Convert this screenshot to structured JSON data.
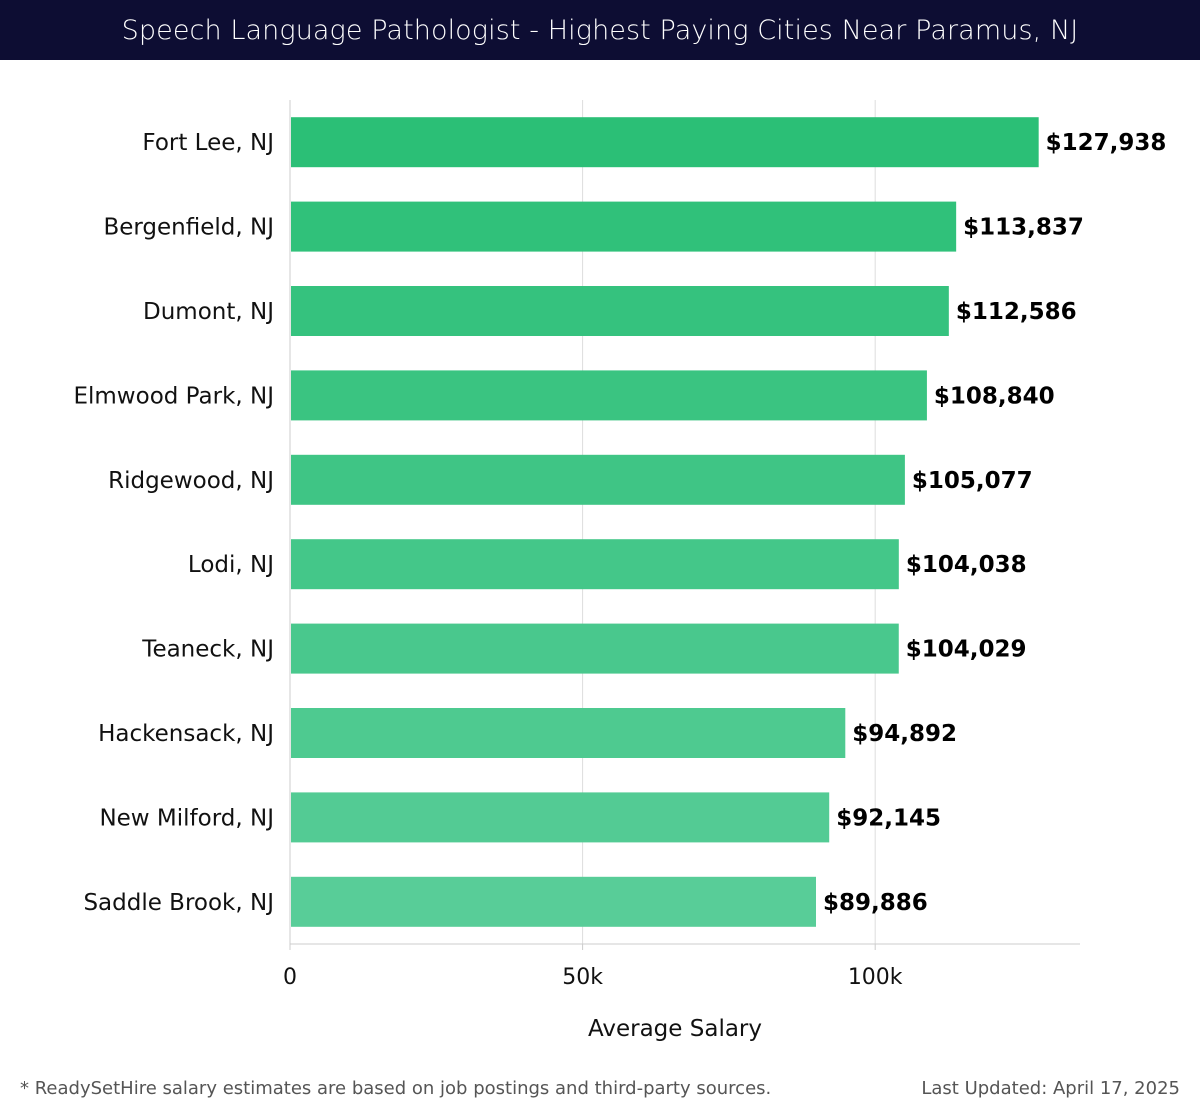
{
  "header": {
    "title": "Speech Language Pathologist - Highest Paying Cities Near Paramus, NJ"
  },
  "chart_data": {
    "type": "bar",
    "orientation": "horizontal",
    "title": "Speech Language Pathologist - Highest Paying Cities Near Paramus, NJ",
    "xlabel": "Average Salary",
    "ylabel": "",
    "xlim": [
      0,
      135000
    ],
    "xticks": [
      0,
      50000,
      100000
    ],
    "xtick_labels": [
      "0",
      "50k",
      "100k"
    ],
    "grid": "vertical",
    "categories": [
      "Fort Lee, NJ",
      "Bergenfield, NJ",
      "Dumont, NJ",
      "Elmwood Park, NJ",
      "Ridgewood, NJ",
      "Lodi, NJ",
      "Teaneck, NJ",
      "Hackensack, NJ",
      "New Milford, NJ",
      "Saddle Brook, NJ"
    ],
    "values": [
      127938,
      113837,
      112586,
      108840,
      105077,
      104038,
      104029,
      94892,
      92145,
      89886
    ],
    "value_labels": [
      "$127,938",
      "$113,837",
      "$112,586",
      "$108,840",
      "$105,077",
      "$104,038",
      "$104,029",
      "$94,892",
      "$92,145",
      "$89,886"
    ],
    "colors": {
      "bar_high": "#2bbf76",
      "bar_low": "#58cd98",
      "grid": "#dddddd",
      "text": "#111111"
    }
  },
  "footer": {
    "note": "* ReadySetHire salary estimates are based on job postings and third-party sources.",
    "updated": "Last Updated: April 17, 2025"
  }
}
